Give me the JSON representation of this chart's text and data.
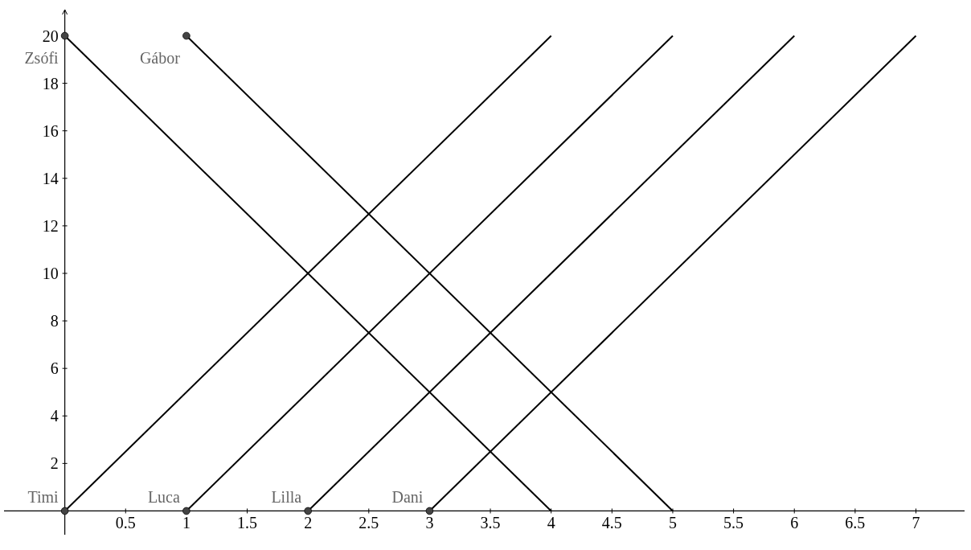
{
  "chart_data": {
    "type": "line",
    "xlim": [
      -0.5,
      7.4
    ],
    "ylim": [
      -1,
      21.1
    ],
    "xticks": [
      0.5,
      1,
      1.5,
      2,
      2.5,
      3,
      3.5,
      4,
      4.5,
      5,
      5.5,
      6,
      6.5,
      7
    ],
    "yticks": [
      2,
      4,
      6,
      8,
      10,
      12,
      14,
      16,
      18,
      20
    ],
    "series": [
      {
        "name": "Timi",
        "color": "#000000",
        "x": [
          0,
          4
        ],
        "values": [
          0,
          20
        ]
      },
      {
        "name": "Luca",
        "color": "#000000",
        "x": [
          1,
          5
        ],
        "values": [
          0,
          20
        ]
      },
      {
        "name": "Lilla",
        "color": "#000000",
        "x": [
          2,
          6
        ],
        "values": [
          0,
          20
        ]
      },
      {
        "name": "Dani",
        "color": "#000000",
        "x": [
          3,
          7
        ],
        "values": [
          0,
          20
        ]
      },
      {
        "name": "Zsófi",
        "color": "#000000",
        "x": [
          0,
          4
        ],
        "values": [
          20,
          0
        ]
      },
      {
        "name": "Gábor",
        "color": "#000000",
        "x": [
          1,
          5
        ],
        "values": [
          20,
          0
        ]
      },
      {
        "type": "scatter",
        "marker": "circle",
        "color": "#444444",
        "x": [
          0,
          1,
          2,
          3,
          0,
          1
        ],
        "values": [
          0,
          0,
          0,
          0,
          20,
          20
        ]
      }
    ]
  }
}
